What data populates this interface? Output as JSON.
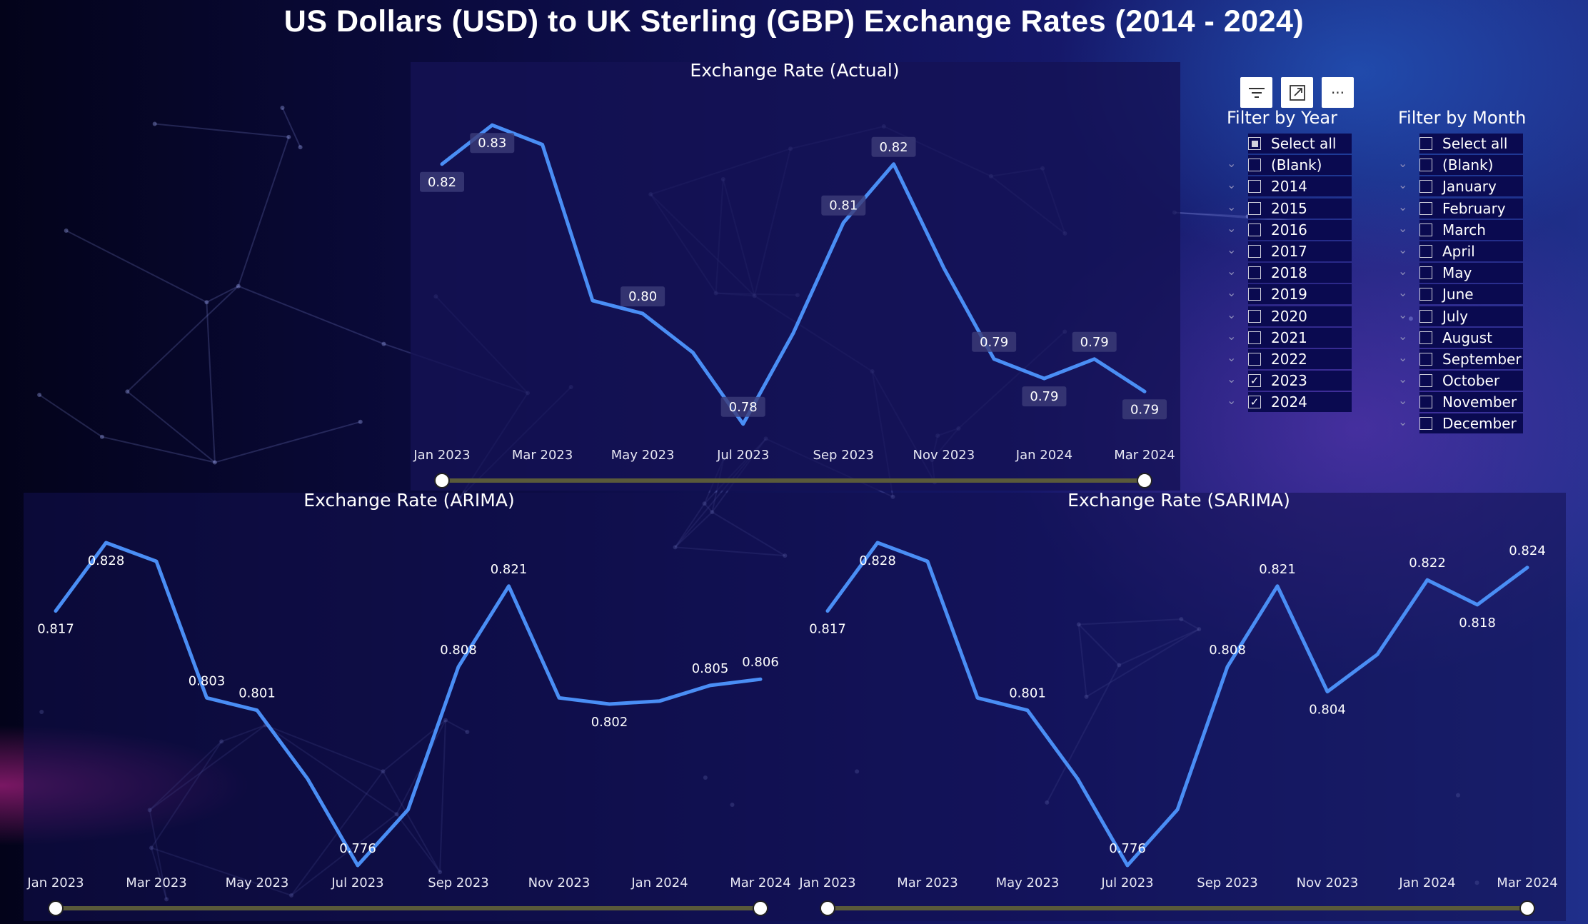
{
  "page": {
    "title": "US Dollars (USD) to UK Sterling (GBP) Exchange Rates (2014 - 2024)"
  },
  "toolbar": {
    "icons": [
      "filter-icon",
      "focus-mode-icon",
      "more-options-icon"
    ],
    "more_label": "···"
  },
  "filters": {
    "year": {
      "title": "Filter by Year",
      "items": [
        {
          "label": "Select all",
          "state": "partial"
        },
        {
          "label": "(Blank)",
          "state": "off"
        },
        {
          "label": "2014",
          "state": "off"
        },
        {
          "label": "2015",
          "state": "off"
        },
        {
          "label": "2016",
          "state": "off"
        },
        {
          "label": "2017",
          "state": "off"
        },
        {
          "label": "2018",
          "state": "off"
        },
        {
          "label": "2019",
          "state": "off"
        },
        {
          "label": "2020",
          "state": "off"
        },
        {
          "label": "2021",
          "state": "off"
        },
        {
          "label": "2022",
          "state": "off"
        },
        {
          "label": "2023",
          "state": "on"
        },
        {
          "label": "2024",
          "state": "on"
        }
      ]
    },
    "month": {
      "title": "Filter by Month",
      "items": [
        {
          "label": "Select all",
          "state": "off"
        },
        {
          "label": "(Blank)",
          "state": "off"
        },
        {
          "label": "January",
          "state": "off"
        },
        {
          "label": "February",
          "state": "off"
        },
        {
          "label": "March",
          "state": "off"
        },
        {
          "label": "April",
          "state": "off"
        },
        {
          "label": "May",
          "state": "off"
        },
        {
          "label": "June",
          "state": "off"
        },
        {
          "label": "July",
          "state": "off"
        },
        {
          "label": "August",
          "state": "off"
        },
        {
          "label": "September",
          "state": "off"
        },
        {
          "label": "October",
          "state": "off"
        },
        {
          "label": "November",
          "state": "off"
        },
        {
          "label": "December",
          "state": "off"
        }
      ]
    }
  },
  "colors": {
    "line": "#4a8ef5",
    "slider_track": "#5a5a3a",
    "slider_handle": "#ffffff"
  },
  "chart_data": [
    {
      "id": "actual",
      "type": "line",
      "title": "Exchange Rate (Actual)",
      "x": [
        "Jan 2023",
        "Feb 2023",
        "Mar 2023",
        "Apr 2023",
        "May 2023",
        "Jun 2023",
        "Jul 2023",
        "Aug 2023",
        "Sep 2023",
        "Oct 2023",
        "Nov 2023",
        "Dec 2023",
        "Jan 2024",
        "Feb 2024",
        "Mar 2024"
      ],
      "x_ticks": [
        "Jan 2023",
        "Mar 2023",
        "May 2023",
        "Jul 2023",
        "Sep 2023",
        "Nov 2023",
        "Jan 2024",
        "Mar 2024"
      ],
      "values": [
        0.822,
        0.828,
        0.825,
        0.801,
        0.799,
        0.793,
        0.782,
        0.796,
        0.813,
        0.822,
        0.806,
        0.792,
        0.789,
        0.792,
        0.787
      ],
      "ylim": [
        0.78,
        0.83
      ],
      "data_labels": [
        {
          "i": 0,
          "text": "0.82",
          "pos": "below"
        },
        {
          "i": 1,
          "text": "0.83",
          "pos": "below"
        },
        {
          "i": 4,
          "text": "0.80",
          "pos": "above"
        },
        {
          "i": 6,
          "text": "0.78",
          "pos": "above"
        },
        {
          "i": 8,
          "text": "0.81",
          "pos": "above"
        },
        {
          "i": 9,
          "text": "0.82",
          "pos": "above"
        },
        {
          "i": 11,
          "text": "0.79",
          "pos": "above"
        },
        {
          "i": 12,
          "text": "0.79",
          "pos": "below"
        },
        {
          "i": 13,
          "text": "0.79",
          "pos": "above"
        },
        {
          "i": 14,
          "text": "0.79",
          "pos": "below"
        }
      ]
    },
    {
      "id": "arima",
      "type": "line",
      "title": "Exchange Rate (ARIMA)",
      "x": [
        "Jan 2023",
        "Feb 2023",
        "Mar 2023",
        "Apr 2023",
        "May 2023",
        "Jun 2023",
        "Jul 2023",
        "Aug 2023",
        "Sep 2023",
        "Oct 2023",
        "Nov 2023",
        "Dec 2023",
        "Jan 2024",
        "Feb 2024",
        "Mar 2024"
      ],
      "x_ticks": [
        "Jan 2023",
        "Mar 2023",
        "May 2023",
        "Jul 2023",
        "Sep 2023",
        "Nov 2023",
        "Jan 2024",
        "Mar 2024"
      ],
      "values": [
        0.817,
        0.828,
        0.825,
        0.803,
        0.801,
        0.79,
        0.776,
        0.785,
        0.808,
        0.821,
        0.803,
        0.802,
        0.8025,
        0.805,
        0.806
      ],
      "ylim": [
        0.776,
        0.828
      ],
      "data_labels": [
        {
          "i": 0,
          "text": "0.817",
          "pos": "below"
        },
        {
          "i": 1,
          "text": "0.828",
          "pos": "below"
        },
        {
          "i": 3,
          "text": "0.803",
          "pos": "above"
        },
        {
          "i": 4,
          "text": "0.801",
          "pos": "above"
        },
        {
          "i": 6,
          "text": "0.776",
          "pos": "above"
        },
        {
          "i": 8,
          "text": "0.808",
          "pos": "above"
        },
        {
          "i": 9,
          "text": "0.821",
          "pos": "above"
        },
        {
          "i": 11,
          "text": "0.802",
          "pos": "below"
        },
        {
          "i": 13,
          "text": "0.805",
          "pos": "above"
        },
        {
          "i": 14,
          "text": "0.806",
          "pos": "above"
        }
      ]
    },
    {
      "id": "sarima",
      "type": "line",
      "title": "Exchange Rate (SARIMA)",
      "x": [
        "Jan 2023",
        "Feb 2023",
        "Mar 2023",
        "Apr 2023",
        "May 2023",
        "Jun 2023",
        "Jul 2023",
        "Aug 2023",
        "Sep 2023",
        "Oct 2023",
        "Nov 2023",
        "Dec 2023",
        "Jan 2024",
        "Feb 2024",
        "Mar 2024"
      ],
      "x_ticks": [
        "Jan 2023",
        "Mar 2023",
        "May 2023",
        "Jul 2023",
        "Sep 2023",
        "Nov 2023",
        "Jan 2024",
        "Mar 2024"
      ],
      "values": [
        0.817,
        0.828,
        0.825,
        0.803,
        0.801,
        0.79,
        0.776,
        0.785,
        0.808,
        0.821,
        0.804,
        0.81,
        0.822,
        0.818,
        0.824
      ],
      "ylim": [
        0.776,
        0.828
      ],
      "data_labels": [
        {
          "i": 0,
          "text": "0.817",
          "pos": "below"
        },
        {
          "i": 1,
          "text": "0.828",
          "pos": "below"
        },
        {
          "i": 4,
          "text": "0.801",
          "pos": "above"
        },
        {
          "i": 6,
          "text": "0.776",
          "pos": "above"
        },
        {
          "i": 8,
          "text": "0.808",
          "pos": "above"
        },
        {
          "i": 9,
          "text": "0.821",
          "pos": "above"
        },
        {
          "i": 10,
          "text": "0.804",
          "pos": "below"
        },
        {
          "i": 12,
          "text": "0.822",
          "pos": "above"
        },
        {
          "i": 13,
          "text": "0.818",
          "pos": "below"
        },
        {
          "i": 14,
          "text": "0.824",
          "pos": "above"
        }
      ]
    }
  ]
}
